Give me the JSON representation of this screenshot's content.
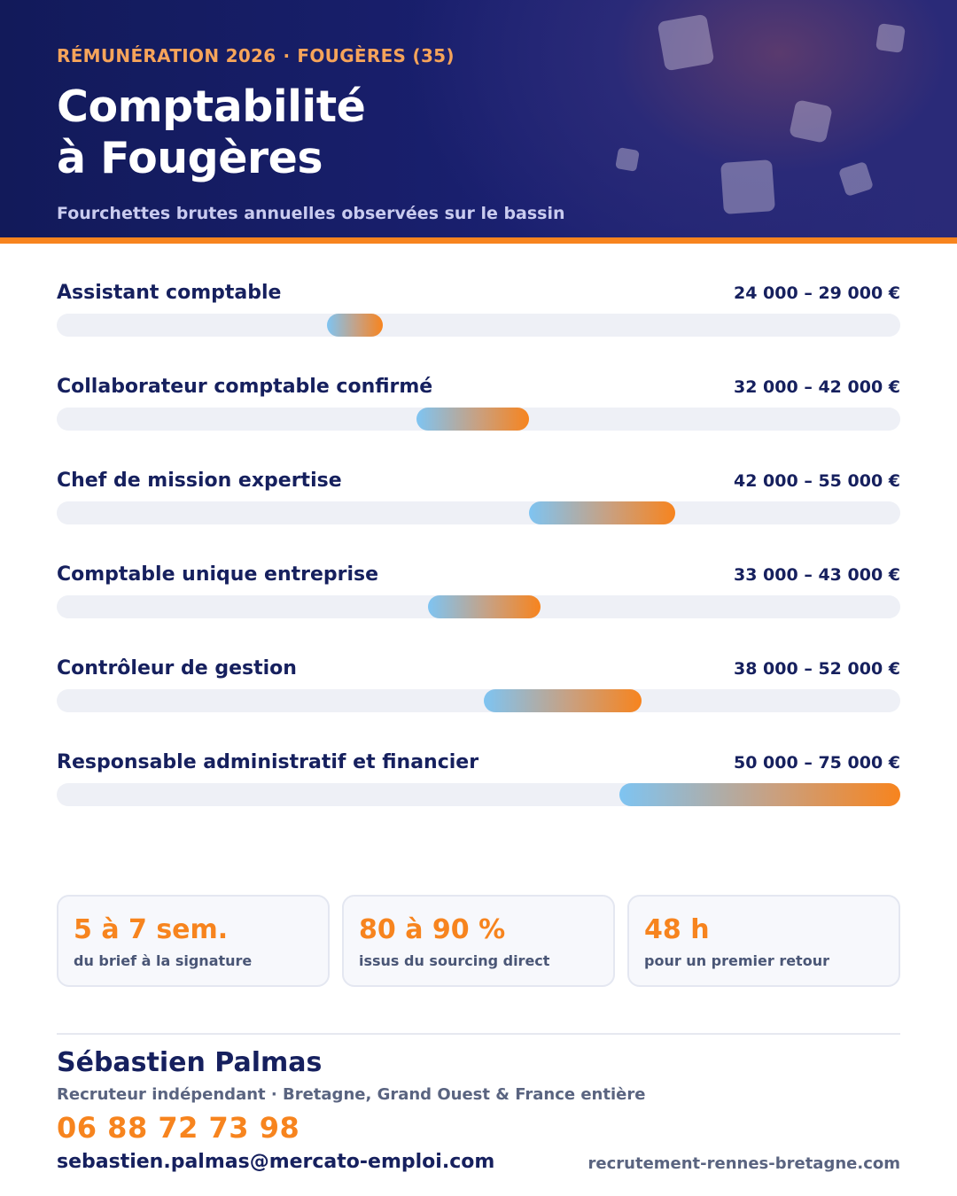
{
  "header": {
    "eyebrow_left": "RÉMUNÉRATION 2026",
    "eyebrow_separator": "·",
    "eyebrow_right": "FOUGÈRES (35)",
    "title_line1": "Comptabilité",
    "title_line2": "à Fougères",
    "subtitle": "Fourchettes brutes annuelles observées sur le bassin"
  },
  "colors": {
    "navy": "#16205e",
    "accent_orange": "#f7841e",
    "bar_start_blue": "#7ec4f2",
    "track": "#eef0f6"
  },
  "salaries": {
    "scale_min": 0,
    "scale_max": 75000,
    "rows": [
      {
        "label": "Assistant comptable",
        "range_text": "24 000 – 29 000 €",
        "min": 24000,
        "max": 29000
      },
      {
        "label": "Collaborateur comptable confirmé",
        "range_text": "32 000 – 42 000 €",
        "min": 32000,
        "max": 42000
      },
      {
        "label": "Chef de mission expertise",
        "range_text": "42 000 – 55 000 €",
        "min": 42000,
        "max": 55000
      },
      {
        "label": "Comptable unique entreprise",
        "range_text": "33 000 – 43 000 €",
        "min": 33000,
        "max": 43000
      },
      {
        "label": "Contrôleur de gestion",
        "range_text": "38 000 – 52 000 €",
        "min": 38000,
        "max": 52000
      },
      {
        "label": "Responsable administratif et financier",
        "range_text": "50 000 – 75 000 €",
        "min": 50000,
        "max": 75000
      }
    ]
  },
  "stats": [
    {
      "value": "5 à 7 sem.",
      "caption": "du brief à la signature"
    },
    {
      "value": "80 à 90 %",
      "caption": "issus du sourcing direct"
    },
    {
      "value": "48 h",
      "caption": "pour un premier retour"
    }
  ],
  "contact": {
    "name": "Sébastien Palmas",
    "role": "Recruteur indépendant · Bretagne, Grand Ouest & France entière",
    "phone": "06 88 72 73 98",
    "email": "sebastien.palmas@mercato-emploi.com",
    "website": "recrutement-rennes-bretagne.com"
  }
}
